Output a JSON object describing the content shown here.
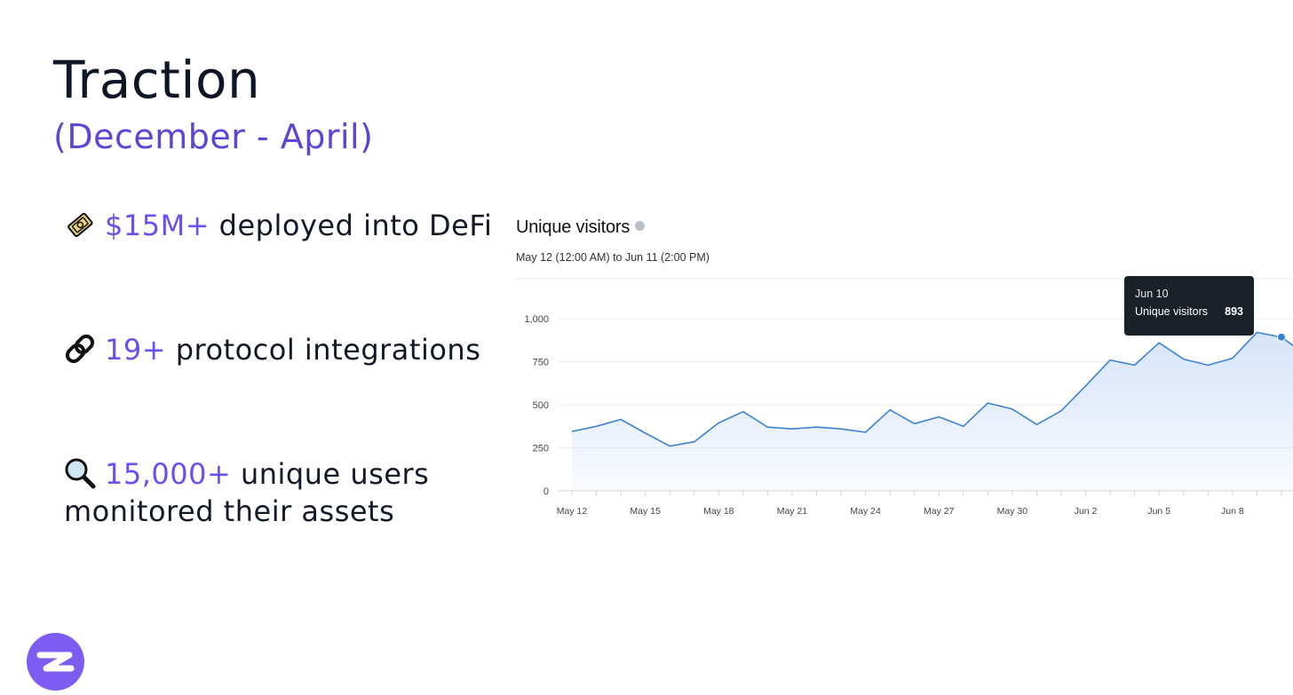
{
  "slide": {
    "title": "Traction",
    "subtitle": "(December - April)"
  },
  "stats": [
    {
      "highlight": "$15M+",
      "text": " deployed into DeFi",
      "icon": "money-bag-icon"
    },
    {
      "highlight": "19+",
      "text": " protocol integrations",
      "icon": "link-chain-icon"
    },
    {
      "highlight": "15,000+",
      "text": " unique users monitored their assets",
      "icon": "magnifying-glass-icon"
    }
  ],
  "colors": {
    "accent": "#6b4ff0",
    "line": "#3b82d6",
    "area": "#d6e4fa",
    "logo": "#7d5cf2"
  },
  "chart_data": {
    "type": "area",
    "title": "Unique visitors",
    "subtitle": "May 12 (12:00 AM) to Jun 11 (2:00 PM)",
    "x": [
      "May 12",
      "May 13",
      "May 14",
      "May 15",
      "May 16",
      "May 17",
      "May 18",
      "May 19",
      "May 20",
      "May 21",
      "May 22",
      "May 23",
      "May 24",
      "May 25",
      "May 26",
      "May 27",
      "May 28",
      "May 29",
      "May 30",
      "May 31",
      "Jun 1",
      "Jun 2",
      "Jun 3",
      "Jun 4",
      "Jun 5",
      "Jun 6",
      "Jun 7",
      "Jun 8",
      "Jun 9",
      "Jun 10",
      "Jun 11"
    ],
    "series": [
      {
        "name": "Unique visitors",
        "values": [
          345,
          375,
          415,
          335,
          260,
          285,
          395,
          460,
          370,
          360,
          370,
          360,
          340,
          470,
          390,
          430,
          375,
          510,
          475,
          385,
          465,
          610,
          760,
          730,
          860,
          765,
          730,
          770,
          920,
          893,
          790
        ]
      }
    ],
    "x_tick_labels": [
      "May 12",
      "May 15",
      "May 18",
      "May 21",
      "May 24",
      "May 27",
      "May 30",
      "Jun 2",
      "Jun 5",
      "Jun 8"
    ],
    "y_ticks": [
      "0",
      "250",
      "500",
      "750",
      "1,000"
    ],
    "ylim": [
      0,
      1000
    ],
    "grid": true,
    "tooltip": {
      "date": "Jun 10",
      "label": "Unique visitors",
      "value": "893"
    }
  }
}
